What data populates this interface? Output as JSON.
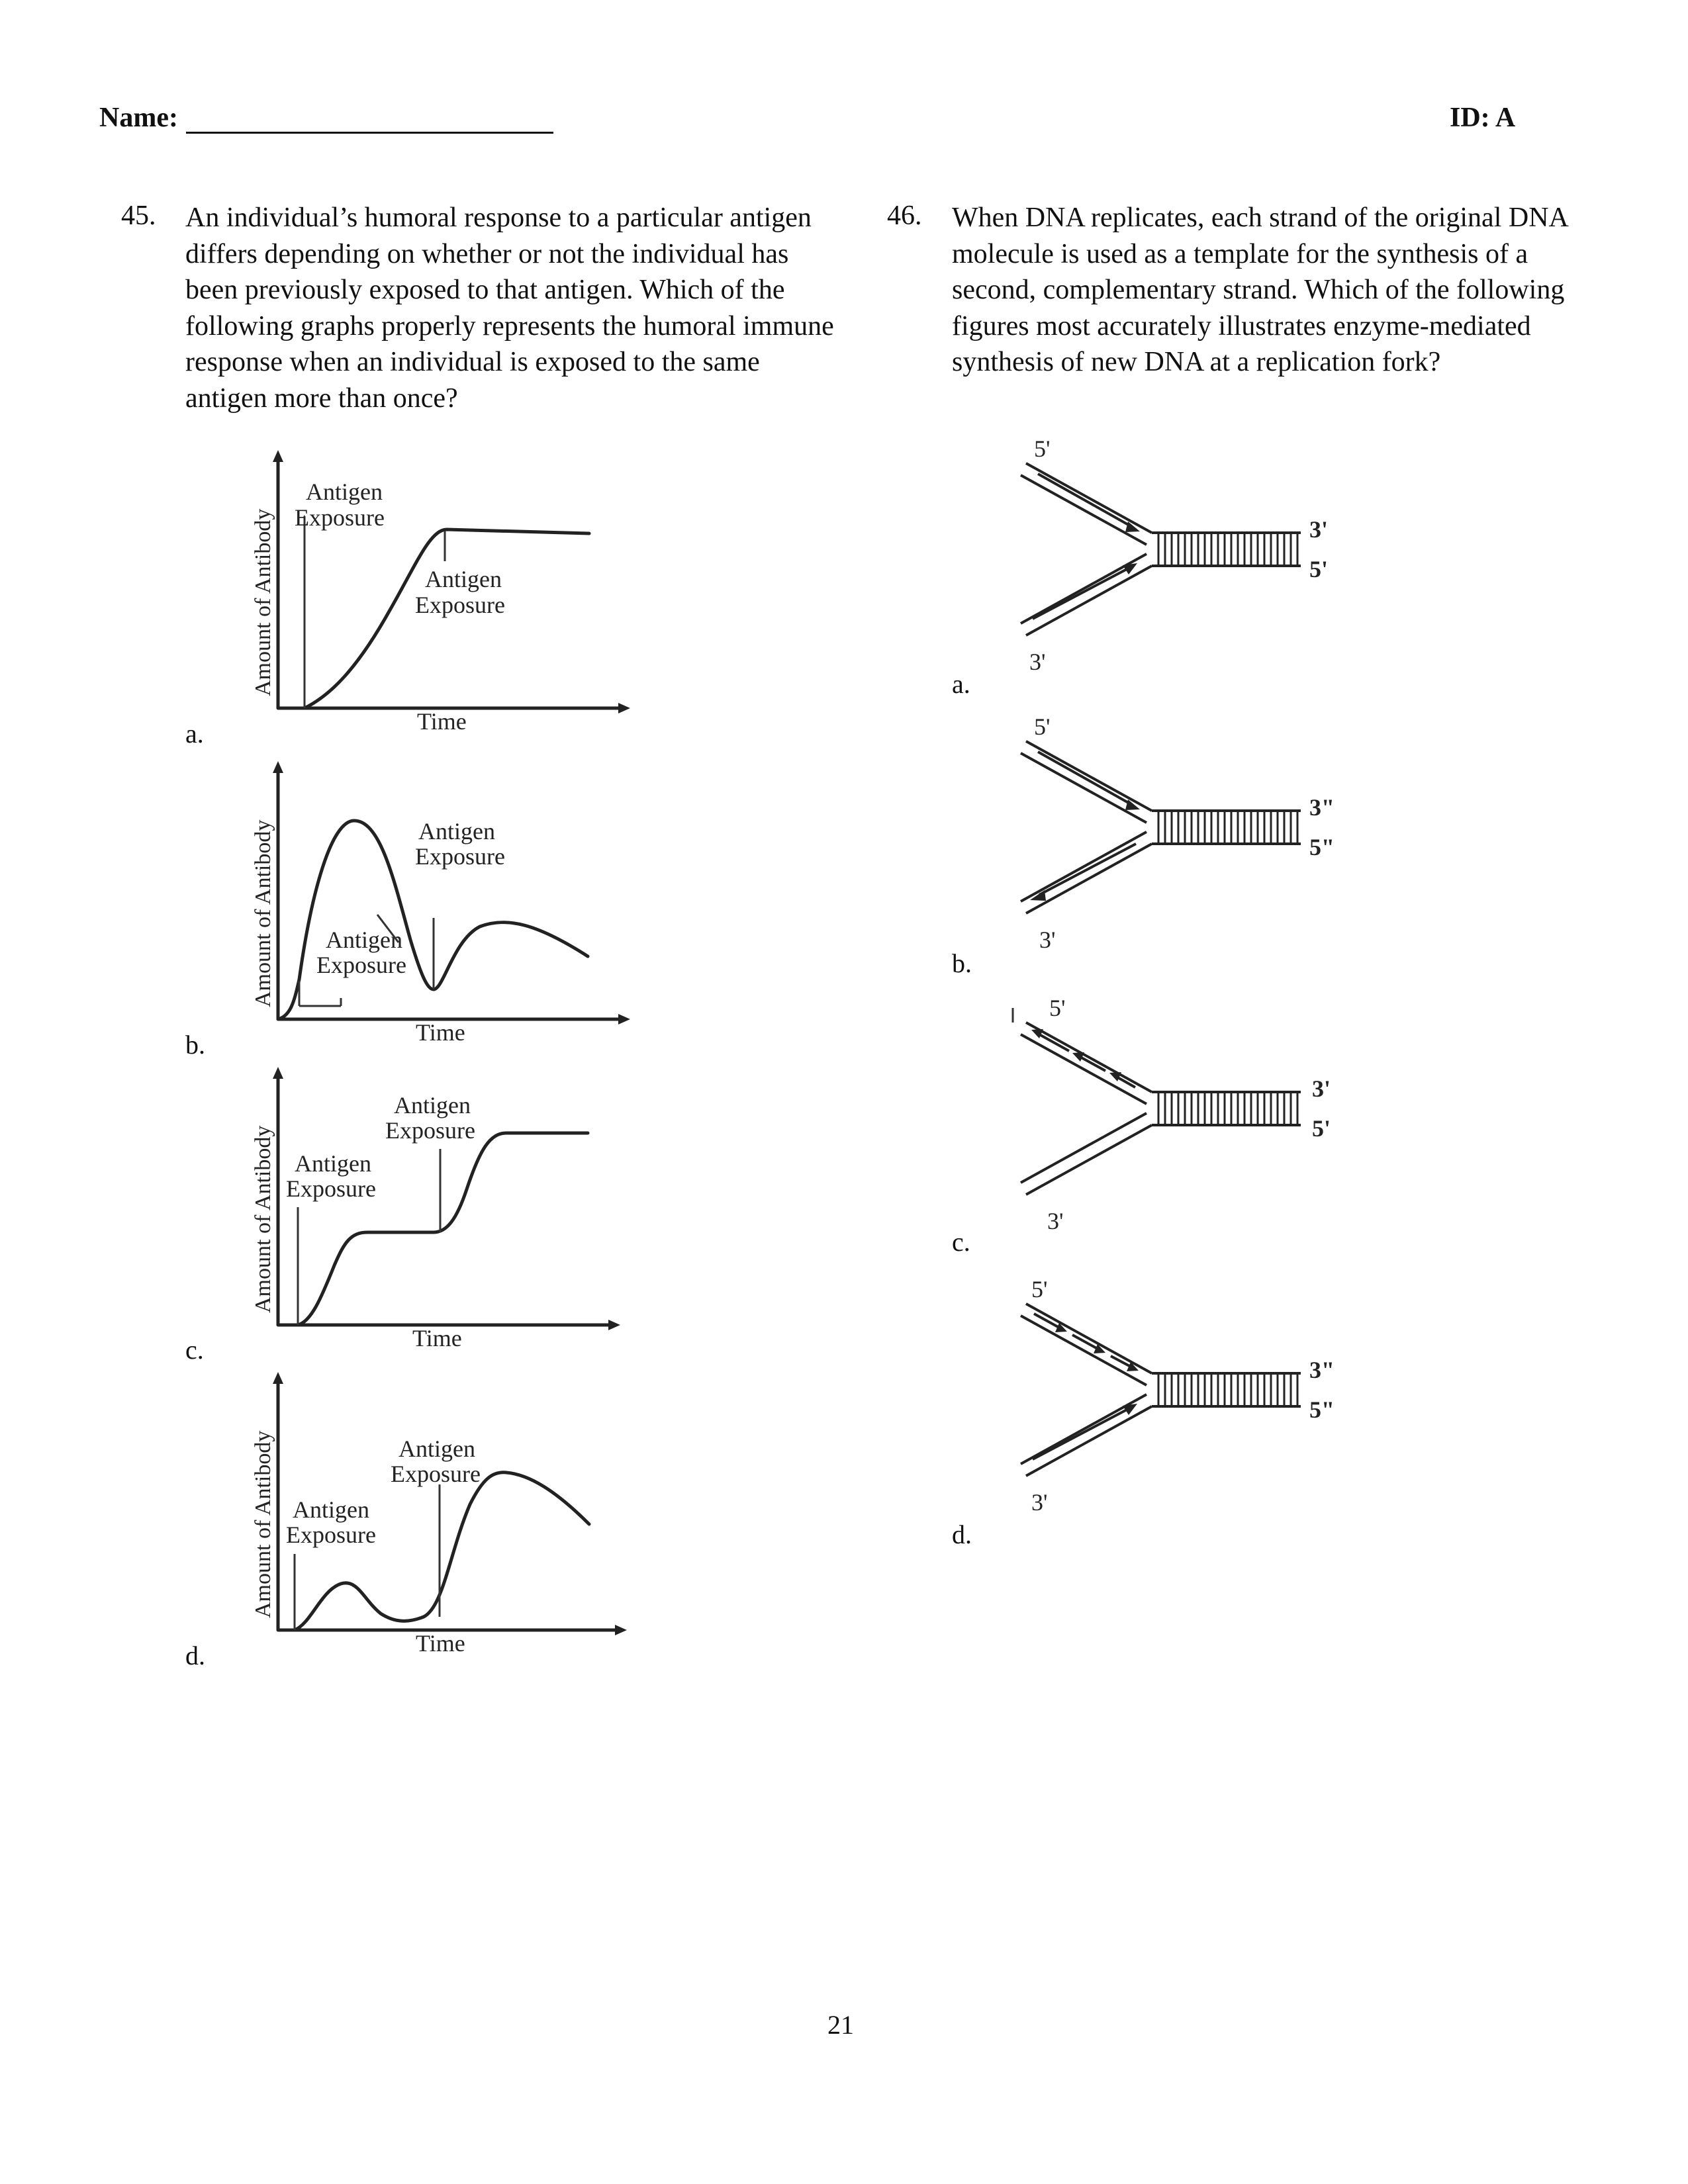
{
  "header": {
    "name_label": "Name:",
    "id_label": "ID: A"
  },
  "q45": {
    "number": "45.",
    "text": "An individual’s humoral response to a particular antigen differs depending on whether or not the individual has been previously exposed to that antigen. Which of the following graphs properly represents the humoral immune response when an individual is exposed to the same antigen more than once?",
    "y_axis_label": "Amount of Antibody",
    "x_axis_label": "Time",
    "annotation_line1": "Antigen",
    "annotation_line2": "Exposure",
    "choices": [
      "a.",
      "b.",
      "c.",
      "d."
    ]
  },
  "q46": {
    "number": "46.",
    "text": "When DNA replicates, each strand of the original DNA molecule is used as a template for the synthesis of a second, complementary strand. Which of the following figures most accurately illustrates enzyme-mediated synthesis of new DNA at a replication fork?",
    "labels": {
      "a": {
        "top": "5'",
        "bottom": "3'",
        "right_top": "3'",
        "right_bottom": "5'"
      },
      "b": {
        "top": "5'",
        "bottom": "3'",
        "right_top": "3\"",
        "right_bottom": "5\""
      },
      "c": {
        "top": "5'",
        "bottom": "3'",
        "right_top": "3'",
        "right_bottom": "5'"
      },
      "d": {
        "top": "5'",
        "bottom": "3'",
        "right_top": "3\"",
        "right_bottom": "5\""
      }
    },
    "choices": [
      "a.",
      "b.",
      "c.",
      "d."
    ]
  },
  "footer": {
    "page_number": "21"
  }
}
